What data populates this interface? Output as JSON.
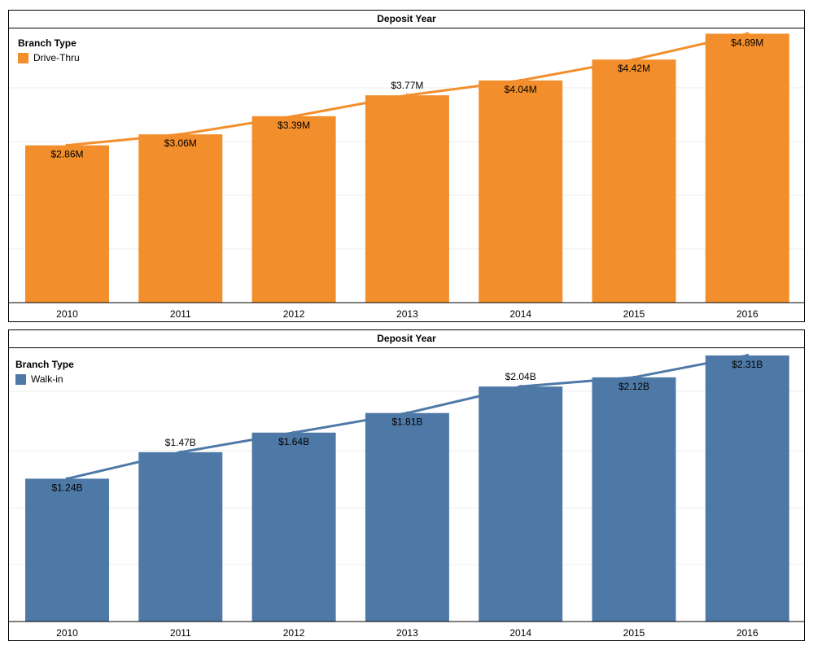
{
  "chart_data": [
    {
      "type": "bar",
      "title": "Deposit Year",
      "legend_title": "Branch Type",
      "legend_label": "Drive-Thru",
      "color": "#f28e2b",
      "categories": [
        "2010",
        "2011",
        "2012",
        "2013",
        "2014",
        "2015",
        "2016"
      ],
      "values": [
        2.86,
        3.06,
        3.39,
        3.77,
        4.04,
        4.42,
        4.89
      ],
      "labels": [
        "$2.86M",
        "$3.06M",
        "$3.39M",
        "$3.77M",
        "$4.04M",
        "$4.42M",
        "$4.89M"
      ],
      "label_above": [
        false,
        false,
        false,
        true,
        false,
        false,
        false
      ],
      "unit": "M",
      "ylim": [
        0,
        5.0
      ],
      "overlay": "line"
    },
    {
      "type": "bar",
      "title": "Deposit Year",
      "legend_title": "Branch Type",
      "legend_label": "Walk-in",
      "color": "#4e79a7",
      "categories": [
        "2010",
        "2011",
        "2012",
        "2013",
        "2014",
        "2015",
        "2016"
      ],
      "values": [
        1.24,
        1.47,
        1.64,
        1.81,
        2.04,
        2.12,
        2.31
      ],
      "labels": [
        "$1.24B",
        "$1.47B",
        "$1.64B",
        "$1.81B",
        "$2.04B",
        "$2.12B",
        "$2.31B"
      ],
      "label_above": [
        false,
        true,
        false,
        false,
        true,
        false,
        false
      ],
      "unit": "B",
      "ylim": [
        0,
        2.38
      ],
      "overlay": "line"
    }
  ]
}
